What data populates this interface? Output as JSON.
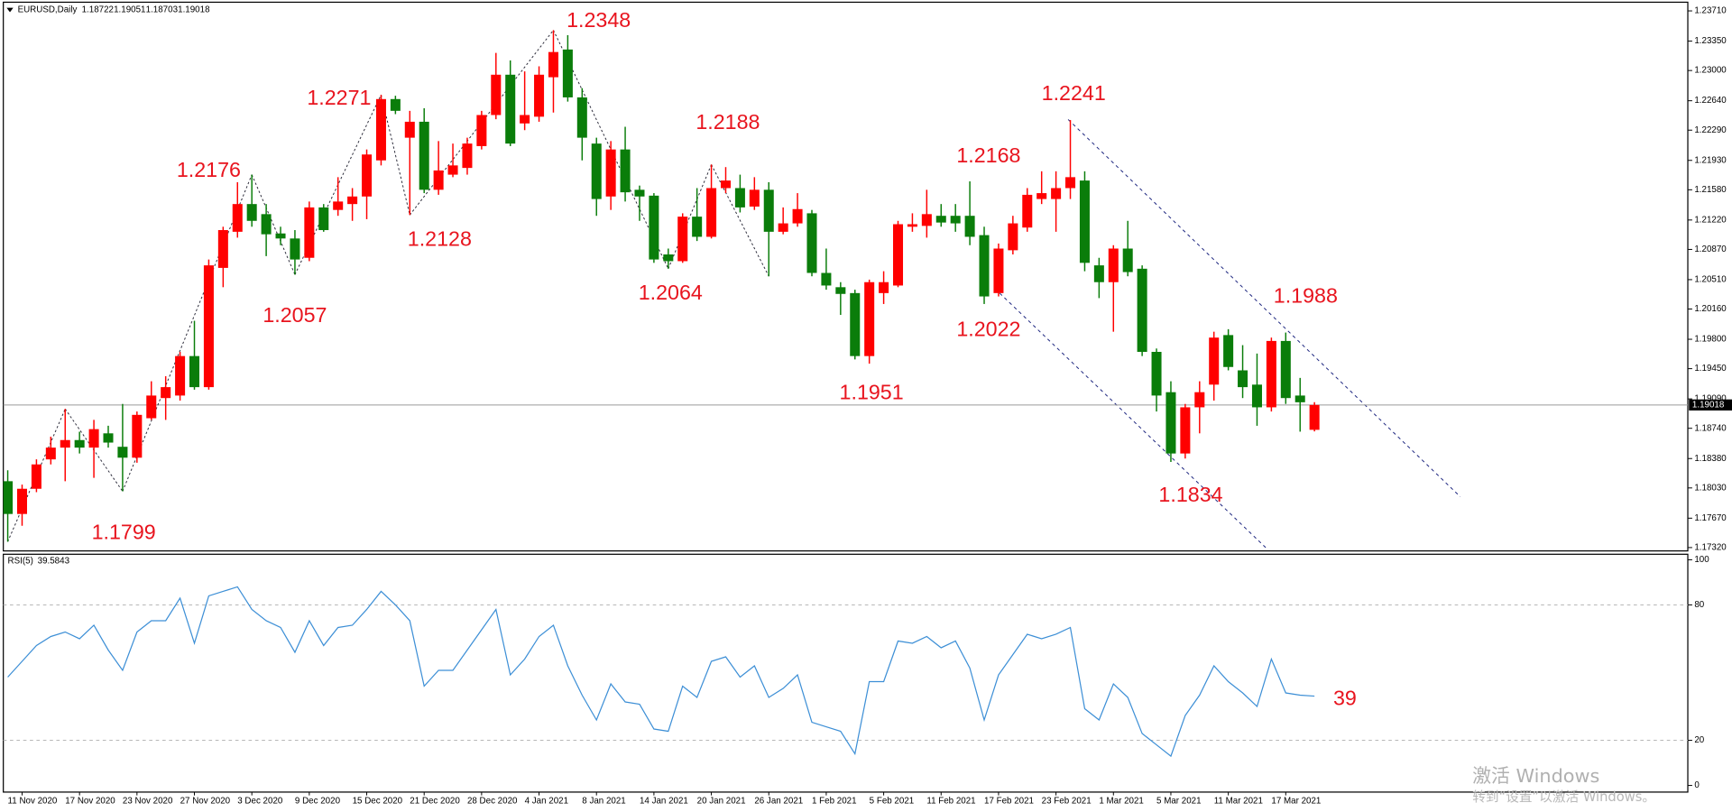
{
  "chart_data": [
    {
      "type": "candlestick",
      "title": "EURUSD,Daily",
      "categories": [
        null,
        "11 Nov 2020",
        null,
        null,
        null,
        "17 Nov 2020",
        null,
        null,
        null,
        "23 Nov 2020",
        null,
        null,
        null,
        "27 Nov 2020",
        null,
        null,
        null,
        "3 Dec 2020",
        null,
        null,
        null,
        "9 Dec 2020",
        null,
        null,
        null,
        "15 Dec 2020",
        null,
        null,
        null,
        "21 Dec 2020",
        null,
        null,
        null,
        "28 Dec 2020",
        null,
        null,
        null,
        "4 Jan 2021",
        null,
        null,
        null,
        "8 Jan 2021",
        null,
        null,
        null,
        "14 Jan 2021",
        null,
        null,
        null,
        "20 Jan 2021",
        null,
        null,
        null,
        "26 Jan 2021",
        null,
        null,
        null,
        "1 Feb 2021",
        null,
        null,
        null,
        "5 Feb 2021",
        null,
        null,
        null,
        "11 Feb 2021",
        null,
        null,
        null,
        "17 Feb 2021",
        null,
        null,
        null,
        "23 Feb 2021",
        null,
        null,
        null,
        "1 Mar 2021",
        null,
        null,
        null,
        "5 Mar 2021",
        null,
        null,
        null,
        "11 Mar 2021",
        null,
        null,
        null,
        "17 Mar 2021",
        null,
        null
      ],
      "open": [
        1.1811,
        1.1772,
        1.1802,
        1.1837,
        1.1851,
        1.186,
        1.1851,
        1.1868,
        1.1852,
        1.1839,
        1.1886,
        1.191,
        1.1913,
        1.196,
        1.1923,
        1.2065,
        1.2108,
        1.2141,
        1.2129,
        1.2106,
        1.21,
        1.2077,
        1.2137,
        1.2134,
        1.2141,
        1.215,
        1.2193,
        1.2266,
        1.222,
        1.2239,
        1.2158,
        1.2176,
        1.2184,
        1.221,
        1.2247,
        1.2295,
        1.2237,
        1.2245,
        1.2292,
        1.2325,
        1.2268,
        1.2213,
        1.215,
        1.2206,
        1.2158,
        1.2151,
        1.2081,
        1.2073,
        1.2126,
        1.2102,
        1.216,
        1.216,
        1.2138,
        1.2158,
        1.2108,
        1.2118,
        1.213,
        1.2059,
        1.2042,
        1.2035,
        1.196,
        1.2035,
        1.2044,
        1.2114,
        1.2115,
        1.2127,
        1.2127,
        1.2127,
        1.2104,
        1.2035,
        1.2086,
        1.2113,
        1.2147,
        1.2147,
        1.216,
        1.2169,
        1.2068,
        1.2048,
        1.2088,
        1.2064,
        1.1965,
        1.1917,
        1.1844,
        1.1899,
        1.1926,
        1.1985,
        1.1943,
        1.1926,
        1.1899,
        1.1978,
        1.1913,
        1.18722
      ],
      "high": [
        1.1824,
        1.1807,
        1.1837,
        1.1864,
        1.1897,
        1.187,
        1.1884,
        1.1877,
        1.1903,
        1.1894,
        1.193,
        1.1936,
        1.1965,
        1.2002,
        1.2075,
        1.2114,
        1.2167,
        1.2176,
        1.2141,
        1.2114,
        1.211,
        1.2144,
        1.2141,
        1.2173,
        1.216,
        1.2206,
        1.2271,
        1.227,
        1.2252,
        1.2255,
        1.2216,
        1.2213,
        1.222,
        1.2252,
        1.2321,
        1.2312,
        1.2299,
        1.2305,
        1.2348,
        1.2342,
        1.2279,
        1.222,
        1.2216,
        1.2233,
        1.2163,
        1.2154,
        1.2088,
        1.213,
        1.216,
        1.2188,
        1.2185,
        1.2176,
        1.2173,
        1.2167,
        1.2137,
        1.2154,
        1.2134,
        1.2088,
        1.2048,
        1.2039,
        1.2051,
        1.2061,
        1.2121,
        1.213,
        1.2158,
        1.2141,
        1.2141,
        1.2168,
        1.2114,
        1.2094,
        1.2127,
        1.216,
        1.218,
        1.218,
        1.2241,
        1.218,
        1.2077,
        1.2092,
        1.2121,
        1.2068,
        1.1969,
        1.193,
        1.1903,
        1.193,
        1.1989,
        1.1992,
        1.1973,
        1.1963,
        1.1982,
        1.1988,
        1.1934,
        1.19051
      ],
      "low": [
        1.1739,
        1.1758,
        1.1798,
        1.1831,
        1.1811,
        1.1844,
        1.1815,
        1.1851,
        1.1799,
        1.1833,
        1.1884,
        1.1884,
        1.1907,
        1.192,
        1.192,
        1.2042,
        1.2101,
        1.2114,
        1.2079,
        1.2092,
        1.2057,
        1.2073,
        1.2108,
        1.2127,
        1.2121,
        1.2123,
        1.2187,
        1.2248,
        1.2128,
        1.2154,
        1.2152,
        1.2173,
        1.2176,
        1.2206,
        1.2242,
        1.221,
        1.2229,
        1.2239,
        1.225,
        1.2263,
        1.2193,
        1.2127,
        1.2134,
        1.2144,
        1.2121,
        1.2071,
        1.2064,
        1.2071,
        1.2097,
        1.21,
        1.2154,
        1.2131,
        1.2134,
        1.2055,
        1.2105,
        1.2114,
        1.2055,
        1.2039,
        1.2009,
        1.1956,
        1.1951,
        1.2022,
        1.2042,
        1.2108,
        1.2101,
        1.2114,
        1.2108,
        1.2092,
        1.2022,
        1.2031,
        1.2081,
        1.2108,
        1.2141,
        1.2108,
        1.2147,
        1.2061,
        1.2029,
        1.1989,
        1.2055,
        1.196,
        1.1894,
        1.1834,
        1.1838,
        1.1868,
        1.1907,
        1.1943,
        1.191,
        1.1877,
        1.1894,
        1.1903,
        1.187,
        1.18703
      ],
      "close": [
        1.1772,
        1.1802,
        1.1831,
        1.1851,
        1.186,
        1.1851,
        1.1873,
        1.1857,
        1.1839,
        1.189,
        1.1913,
        1.1923,
        1.196,
        1.1923,
        1.2068,
        1.211,
        1.2141,
        1.2121,
        1.2105,
        1.21,
        1.2075,
        1.2137,
        1.211,
        1.2144,
        1.215,
        1.22,
        1.2266,
        1.2252,
        1.2239,
        1.2158,
        1.2181,
        1.2187,
        1.2213,
        1.2247,
        1.2295,
        1.2213,
        1.2247,
        1.2295,
        1.2322,
        1.2268,
        1.222,
        1.2147,
        1.2206,
        1.2155,
        1.215,
        1.2075,
        1.2073,
        1.2126,
        1.2102,
        1.216,
        1.2169,
        1.2137,
        1.2158,
        1.2108,
        1.2118,
        1.2135,
        1.2059,
        1.2044,
        1.2034,
        1.196,
        1.2048,
        1.2048,
        1.2117,
        1.2117,
        1.2129,
        1.2119,
        1.2118,
        1.2102,
        1.2031,
        1.2088,
        1.2118,
        1.2152,
        1.2154,
        1.216,
        1.2173,
        1.2071,
        1.2048,
        1.2088,
        1.206,
        1.1965,
        1.1913,
        1.1844,
        1.1899,
        1.1917,
        1.1982,
        1.1947,
        1.1923,
        1.1899,
        1.1978,
        1.191,
        1.1905,
        1.19018
      ],
      "up_color": "#ff0000",
      "down_color": "#0a7d0a",
      "ylim": [
        1.1728,
        1.238
      ],
      "yticks": [
        {
          "value": 1.1732,
          "label": "1.17320"
        },
        {
          "value": 1.1767,
          "label": "1.17670"
        },
        {
          "value": 1.1803,
          "label": "1.18030"
        },
        {
          "value": 1.1838,
          "label": "1.18380"
        },
        {
          "value": 1.1874,
          "label": "1.18740"
        },
        {
          "value": 1.1909,
          "label": "1.19090"
        },
        {
          "value": 1.1945,
          "label": "1.19450"
        },
        {
          "value": 1.198,
          "label": "1.19800"
        },
        {
          "value": 1.2016,
          "label": "1.20160"
        },
        {
          "value": 1.2051,
          "label": "1.20510"
        },
        {
          "value": 1.2087,
          "label": "1.20870"
        },
        {
          "value": 1.2122,
          "label": "1.21220"
        },
        {
          "value": 1.2158,
          "label": "1.21580"
        },
        {
          "value": 1.2193,
          "label": "1.21930"
        },
        {
          "value": 1.2229,
          "label": "1.22290"
        },
        {
          "value": 1.2264,
          "label": "1.22640"
        },
        {
          "value": 1.23,
          "label": "1.23000"
        },
        {
          "value": 1.2335,
          "label": "1.23350"
        },
        {
          "value": 1.2371,
          "label": "1.23710"
        }
      ],
      "grid": false,
      "annotations": [
        "1.1799",
        "1.2176",
        "1.2057",
        "1.2271",
        "1.2128",
        "1.2348",
        "1.2064",
        "1.2188",
        "1.1951",
        "1.2168",
        "1.2022",
        "1.2241",
        "1.1834",
        "1.1988"
      ]
    },
    {
      "type": "line",
      "title": "RSI(5)",
      "color": "#3d8fd6",
      "values": [
        48,
        55,
        62,
        66,
        68,
        65,
        71,
        60,
        51,
        68,
        73,
        73,
        83,
        63,
        84,
        86,
        88,
        78,
        73,
        70,
        59,
        73,
        62,
        70,
        71,
        78,
        86,
        80,
        73,
        44,
        51,
        51,
        60,
        69,
        78,
        49,
        56,
        66,
        71,
        53,
        40,
        29,
        45,
        37,
        36,
        25,
        24,
        44,
        39,
        55,
        57,
        48,
        53,
        39,
        43,
        49,
        28,
        26,
        24,
        14,
        46,
        46,
        64,
        63,
        66,
        61,
        64,
        52,
        29,
        49,
        58,
        67,
        65,
        67,
        70,
        34,
        29,
        45,
        39,
        23,
        18,
        13,
        31,
        40,
        53,
        46,
        41,
        35,
        56,
        41,
        40,
        39.5843
      ],
      "ylim": [
        0,
        100
      ],
      "yticks": [
        0,
        20,
        80,
        100
      ],
      "grid": "dashed",
      "annotation": "39"
    }
  ],
  "watermark": {
    "line1": "激活 Windows",
    "line2": "转到“设置”以激活 Windows。"
  }
}
